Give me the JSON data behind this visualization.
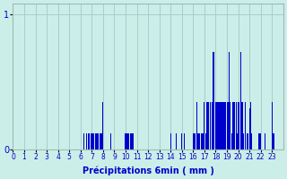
{
  "xlabel": "Précipitations 6min ( mm )",
  "background_color": "#cceee8",
  "bar_color": "#0000cc",
  "grid_color": "#aacccc",
  "xlim": [
    0,
    240
  ],
  "ylim": [
    0,
    1.08
  ],
  "yticks": [
    0,
    1
  ],
  "ytick_labels": [
    "0",
    "1"
  ],
  "xticks": [
    0,
    10,
    20,
    30,
    40,
    50,
    60,
    70,
    80,
    90,
    100,
    110,
    120,
    130,
    140,
    150,
    160,
    170,
    180,
    190,
    200,
    210,
    220,
    230
  ],
  "xtick_labels": [
    "0",
    "1",
    "2",
    "3",
    "4",
    "5",
    "6",
    "7",
    "8",
    "9",
    "10",
    "11",
    "12",
    "13",
    "14",
    "15",
    "16",
    "17",
    "18",
    "19",
    "20",
    "21",
    "22",
    "23"
  ],
  "all_bars": [
    [
      63,
      0.12
    ],
    [
      65,
      0.12
    ],
    [
      67,
      0.12
    ],
    [
      68,
      0.12
    ],
    [
      69,
      0.12
    ],
    [
      70,
      0.12
    ],
    [
      71,
      0.12
    ],
    [
      72,
      0.12
    ],
    [
      73,
      0.12
    ],
    [
      74,
      0.12
    ],
    [
      75,
      0.12
    ],
    [
      76,
      0.12
    ],
    [
      77,
      0.12
    ],
    [
      78,
      0.12
    ],
    [
      79,
      0.12
    ],
    [
      80,
      0.35
    ],
    [
      87,
      0.12
    ],
    [
      100,
      0.12
    ],
    [
      101,
      0.12
    ],
    [
      102,
      0.12
    ],
    [
      103,
      0.12
    ],
    [
      104,
      0.12
    ],
    [
      105,
      0.12
    ],
    [
      106,
      0.12
    ],
    [
      107,
      0.12
    ],
    [
      140,
      0.12
    ],
    [
      145,
      0.12
    ],
    [
      150,
      0.12
    ],
    [
      152,
      0.12
    ],
    [
      160,
      0.12
    ],
    [
      161,
      0.12
    ],
    [
      162,
      0.12
    ],
    [
      163,
      0.35
    ],
    [
      164,
      0.12
    ],
    [
      165,
      0.12
    ],
    [
      166,
      0.12
    ],
    [
      167,
      0.12
    ],
    [
      168,
      0.12
    ],
    [
      169,
      0.12
    ],
    [
      170,
      0.35
    ],
    [
      171,
      0.12
    ],
    [
      172,
      0.35
    ],
    [
      173,
      0.35
    ],
    [
      174,
      0.35
    ],
    [
      175,
      0.35
    ],
    [
      177,
      0.35
    ],
    [
      178,
      0.72
    ],
    [
      180,
      0.35
    ],
    [
      181,
      0.35
    ],
    [
      182,
      0.35
    ],
    [
      183,
      0.35
    ],
    [
      184,
      0.35
    ],
    [
      185,
      0.35
    ],
    [
      186,
      0.35
    ],
    [
      187,
      0.35
    ],
    [
      188,
      0.35
    ],
    [
      189,
      0.35
    ],
    [
      190,
      0.35
    ],
    [
      191,
      0.35
    ],
    [
      192,
      0.72
    ],
    [
      193,
      0.35
    ],
    [
      194,
      0.12
    ],
    [
      195,
      0.35
    ],
    [
      196,
      0.35
    ],
    [
      197,
      0.35
    ],
    [
      198,
      0.35
    ],
    [
      199,
      0.12
    ],
    [
      200,
      0.35
    ],
    [
      201,
      0.35
    ],
    [
      202,
      0.72
    ],
    [
      203,
      0.35
    ],
    [
      204,
      0.35
    ],
    [
      205,
      0.12
    ],
    [
      206,
      0.35
    ],
    [
      208,
      0.12
    ],
    [
      209,
      0.12
    ],
    [
      210,
      0.3
    ],
    [
      211,
      0.35
    ],
    [
      212,
      0.12
    ],
    [
      218,
      0.12
    ],
    [
      219,
      0.12
    ],
    [
      220,
      0.12
    ],
    [
      224,
      0.12
    ],
    [
      230,
      0.35
    ],
    [
      231,
      0.12
    ],
    [
      232,
      0.12
    ]
  ]
}
